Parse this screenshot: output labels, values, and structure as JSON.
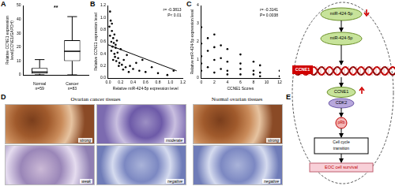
{
  "chart_data": [
    {
      "panel_label": "A",
      "type": "box",
      "categories": [
        [
          "Normal",
          "n=59"
        ],
        [
          "Cancer",
          "n=83"
        ]
      ],
      "boxes": [
        {
          "min": 0,
          "q1": 0.8,
          "median": 2,
          "q3": 5,
          "max": 11
        },
        {
          "min": 0,
          "q1": 10,
          "median": 17,
          "q3": 25,
          "max": 42
        }
      ],
      "y_label": [
        "Relative CCNE1 expression",
        "level(CCNE1/GAPDH)"
      ],
      "ylim": [
        0,
        50
      ],
      "yticks": [
        0,
        10,
        20,
        30,
        40,
        50
      ],
      "annotations": [
        {
          "text": "**",
          "x": 0.5,
          "y": 46
        }
      ],
      "color": "#000000"
    },
    {
      "panel_label": "B",
      "type": "scatter",
      "x_label": "Relative miR-424-5p expression level",
      "y_label": "Relative CCNE1 expression level",
      "x": [
        0.02,
        0.03,
        0.04,
        0.05,
        0.05,
        0.06,
        0.07,
        0.08,
        0.08,
        0.09,
        0.1,
        0.1,
        0.11,
        0.12,
        0.13,
        0.14,
        0.15,
        0.16,
        0.18,
        0.2,
        0.22,
        0.25,
        0.28,
        0.3,
        0.35,
        0.4,
        0.45,
        0.5,
        0.6,
        0.7,
        0.8,
        0.95,
        1.05,
        0.03,
        0.06,
        0.12,
        0.17,
        0.24,
        0.33,
        0.55
      ],
      "y": [
        0.85,
        0.7,
        0.95,
        0.6,
        0.45,
        0.78,
        0.52,
        0.66,
        0.3,
        0.58,
        0.4,
        0.72,
        0.35,
        0.5,
        0.28,
        0.62,
        0.42,
        0.33,
        0.25,
        0.48,
        0.22,
        0.3,
        0.18,
        0.38,
        0.2,
        0.15,
        0.25,
        0.12,
        0.1,
        0.18,
        0.08,
        0.05,
        0.12,
        1.1,
        0.9,
        0.55,
        0.2,
        0.14,
        0.1,
        0.3
      ],
      "fit_line": {
        "x": [
          0,
          1.1
        ],
        "y": [
          0.55,
          0.12
        ]
      },
      "xlim": [
        0,
        1.2
      ],
      "xticks": [
        {
          "value": 0,
          "label": "0.0"
        },
        0.2,
        0.4,
        0.6,
        0.8,
        {
          "value": 1,
          "label": "1.0"
        },
        1.2
      ],
      "ylim": [
        0,
        1.2
      ],
      "yticks": [
        {
          "value": 0,
          "label": "0.0"
        },
        0.2,
        0.4,
        0.6,
        0.8,
        {
          "value": 1,
          "label": "1.0"
        },
        1.2
      ],
      "annotation_texts": [
        "r= -0.3813",
        "P< 0.01"
      ],
      "marker": "circle",
      "color": "#000000"
    },
    {
      "panel_label": "C",
      "type": "scatter",
      "x_label": "CCNE1 Scores",
      "y_label": "Relative miR-424-5p expression level",
      "x": [
        0,
        0,
        0,
        0,
        0,
        1,
        1,
        1,
        2,
        2,
        2,
        2,
        3,
        3,
        3,
        4,
        4,
        4,
        4,
        6,
        6,
        6,
        6,
        8,
        8,
        8,
        9,
        9,
        9,
        12,
        12
      ],
      "y": [
        2.8,
        1.9,
        1.2,
        0.8,
        0.4,
        2.2,
        1.5,
        0.6,
        2.4,
        1.7,
        1.0,
        0.3,
        1.8,
        1.1,
        0.5,
        1.6,
        0.9,
        0.4,
        0.2,
        1.3,
        0.8,
        0.5,
        0.2,
        0.9,
        0.4,
        0.2,
        0.7,
        0.3,
        0.1,
        0.4,
        0.1
      ],
      "xlim": [
        0,
        12
      ],
      "xticks": [
        0,
        2,
        4,
        6,
        8,
        10,
        12
      ],
      "ylim": [
        0,
        4
      ],
      "yticks": [
        0,
        1,
        2,
        3,
        4
      ],
      "annotation_texts": [
        "r= -0.3141",
        "P= 0.0038"
      ],
      "marker": "circle",
      "color": "#000000"
    }
  ],
  "panel_d": {
    "panel_label": "D",
    "groups": [
      {
        "title": "Ovarian cancer tissues",
        "images": [
          "strong",
          "moderate",
          "weak",
          "negative"
        ]
      },
      {
        "title": "Normal ovarian tissues",
        "images": [
          "strong",
          "negative"
        ]
      }
    ]
  },
  "panel_e": {
    "panel_label": "E",
    "nodes": {
      "mirna_top": "miR-424-5p",
      "mirna": "miR-424-5p",
      "gene": "CCNE1",
      "protein": "CCNE1",
      "partner": "CDK2",
      "target": "pRb",
      "process": "Cell cycle transition",
      "outcome": "EOC cell survival"
    }
  }
}
